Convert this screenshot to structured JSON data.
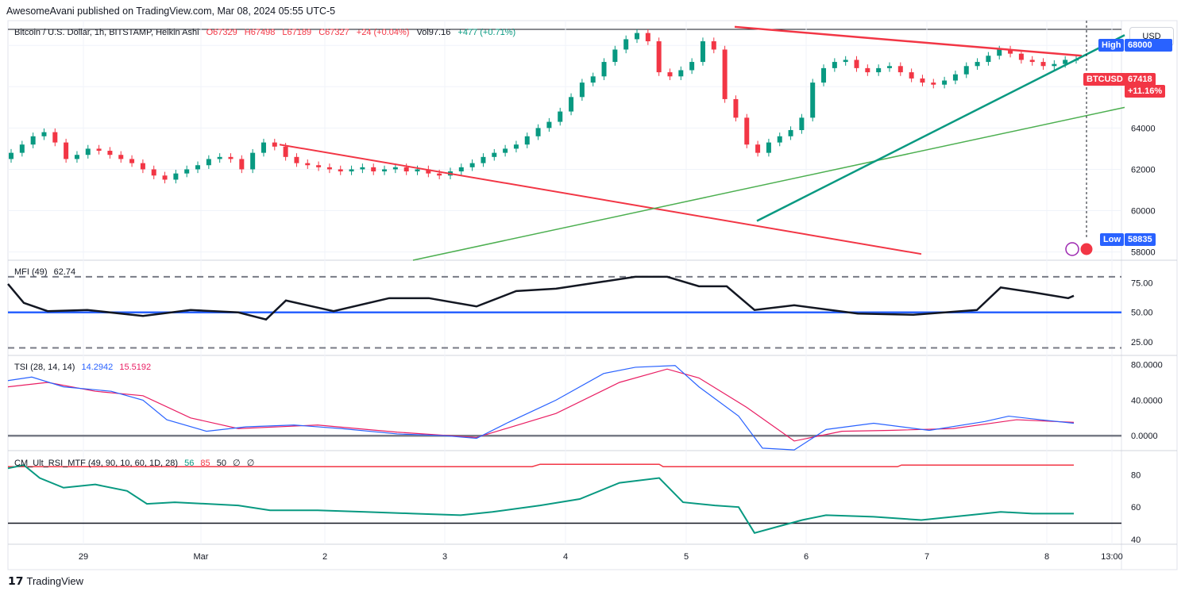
{
  "header": {
    "publisher": "AwesomeAvani published on TradingView.com, Mar 08, 2024 05:55 UTC-5"
  },
  "legend": {
    "symbol": "Bitcoin / U.S. Dollar, 1h, BITSTAMP, Heikin Ashi",
    "o": "O67329",
    "h": "H67498",
    "l": "L67189",
    "c": "C67327",
    "chg": "+24 (+0.04%)",
    "vol": "Vol97.16",
    "volchg": "+477 (+0.71%)"
  },
  "currency": "USD",
  "tags": {
    "high": "High",
    "high_val": "68000",
    "symbol": "BTCUSD",
    "price": "67418",
    "change": "+11.16%",
    "low": "Low",
    "low_val": "58835"
  },
  "indicators": {
    "mfi": {
      "name": "MFI (49)",
      "value": "62.74"
    },
    "tsi": {
      "name": "TSI (28, 14, 14)",
      "v1": "14.2942",
      "v2": "15.5192"
    },
    "rsi": {
      "name": "CM_Ult_RSI_MTF (49, 90, 10, 60, 1D, 28)",
      "v1": "56",
      "v2": "85",
      "v3": "50",
      "v4": "∅",
      "v5": "∅"
    }
  },
  "footer": {
    "brand": "TradingView"
  },
  "chart_data": {
    "type": "line",
    "price_axis": {
      "ylim": [
        57600,
        69200
      ],
      "ticks": [
        58000,
        60000,
        62000,
        64000,
        66000,
        68000
      ]
    },
    "time_ticks": [
      "29",
      "Mar",
      "2",
      "3",
      "4",
      "5",
      "6",
      "7",
      "8",
      "13:00"
    ],
    "price_close_path": [
      62800,
      63200,
      63600,
      63800,
      63300,
      62500,
      62700,
      63000,
      62900,
      62700,
      62500,
      62300,
      62000,
      61700,
      61500,
      61800,
      62000,
      62200,
      62500,
      62600,
      62500,
      62000,
      62800,
      63300,
      63100,
      62600,
      62300,
      62200,
      62100,
      62000,
      61900,
      62000,
      62100,
      61900,
      62000,
      62100,
      61900,
      62000,
      61800,
      61700,
      61900,
      62100,
      62300,
      62600,
      62800,
      63000,
      63200,
      63600,
      64000,
      64300,
      64800,
      65500,
      66200,
      66500,
      67200,
      67800,
      68300,
      68600,
      68200,
      66700,
      66500,
      66800,
      67200,
      68200,
      67800,
      65400,
      64500,
      63200,
      62800,
      63300,
      63600,
      63900,
      64500,
      66200,
      66900,
      67200,
      67300,
      66900,
      66700,
      66900,
      67000,
      66700,
      66400,
      66200,
      66100,
      66300,
      66600,
      67000,
      67200,
      67500,
      67800,
      67600,
      67300,
      67200,
      67000,
      67100,
      67300,
      67327
    ],
    "mfi": {
      "ylim": [
        15,
        90
      ],
      "levels": [
        80,
        50,
        20
      ],
      "ticks": [
        75,
        50,
        25
      ]
    },
    "tsi": {
      "ylim": [
        -15,
        85
      ],
      "ticks": [
        80,
        40,
        0
      ]
    },
    "rsi": {
      "ylim": [
        38,
        92
      ],
      "ticks": [
        80,
        60,
        40
      ]
    }
  }
}
